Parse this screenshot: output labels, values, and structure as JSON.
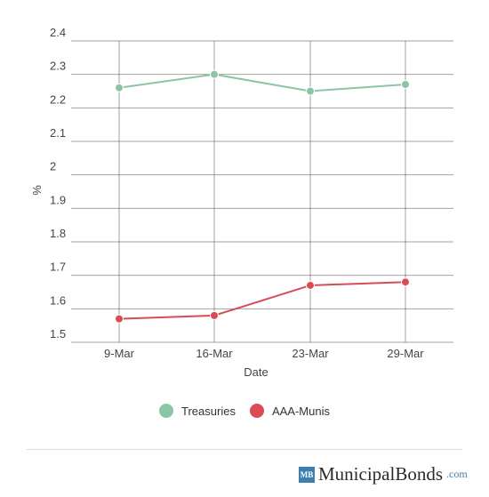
{
  "chart_data": {
    "type": "line",
    "categories": [
      "9-Mar",
      "16-Mar",
      "23-Mar",
      "29-Mar"
    ],
    "series": [
      {
        "name": "Treasuries",
        "color": "#8cc5a4",
        "values": [
          2.26,
          2.3,
          2.25,
          2.27
        ]
      },
      {
        "name": "AAA-Munis",
        "color": "#d94c55",
        "values": [
          1.57,
          1.58,
          1.67,
          1.68
        ]
      }
    ],
    "y_ticks": [
      "1.5",
      "1.6",
      "1.7",
      "1.8",
      "1.9",
      "2",
      "2.1",
      "2.2",
      "2.3",
      "2.4"
    ],
    "ylim": [
      1.5,
      2.4
    ],
    "xlabel": "Date",
    "ylabel": "%",
    "grid": true,
    "legend_position": "bottom"
  },
  "brand": {
    "logo_text": "MB",
    "name": "MunicipalBonds",
    "tld": ".com"
  }
}
